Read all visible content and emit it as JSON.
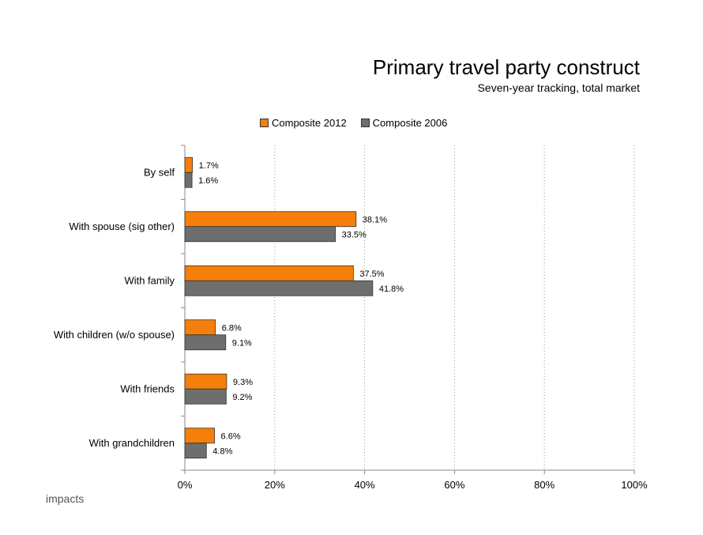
{
  "chart_data": {
    "type": "bar",
    "orientation": "horizontal",
    "title": "Primary travel party construct",
    "subtitle": "Seven-year tracking, total market",
    "categories": [
      "By self",
      "With spouse (sig other)",
      "With family",
      "With children (w/o spouse)",
      "With friends",
      "With grandchildren"
    ],
    "series": [
      {
        "name": "Composite 2012",
        "color": "#f57f0a",
        "values": [
          1.7,
          38.1,
          37.5,
          6.8,
          9.3,
          6.6
        ],
        "labels": [
          "1.7%",
          "38.1%",
          "37.5%",
          "6.8%",
          "9.3%",
          "6.6%"
        ]
      },
      {
        "name": "Composite 2006",
        "color": "#6e6e6e",
        "values": [
          1.6,
          33.5,
          41.8,
          9.1,
          9.2,
          4.8
        ],
        "labels": [
          "1.6%",
          "33.5%",
          "41.8%",
          "9.1%",
          "9.2%",
          "4.8%"
        ]
      }
    ],
    "xlim": [
      0,
      100
    ],
    "xticks": [
      0,
      20,
      40,
      60,
      80,
      100
    ],
    "xtick_labels": [
      "0%",
      "20%",
      "40%",
      "60%",
      "80%",
      "100%"
    ],
    "grid": "vertical dotted",
    "legend_position": "top"
  },
  "logo_text": "impacts"
}
